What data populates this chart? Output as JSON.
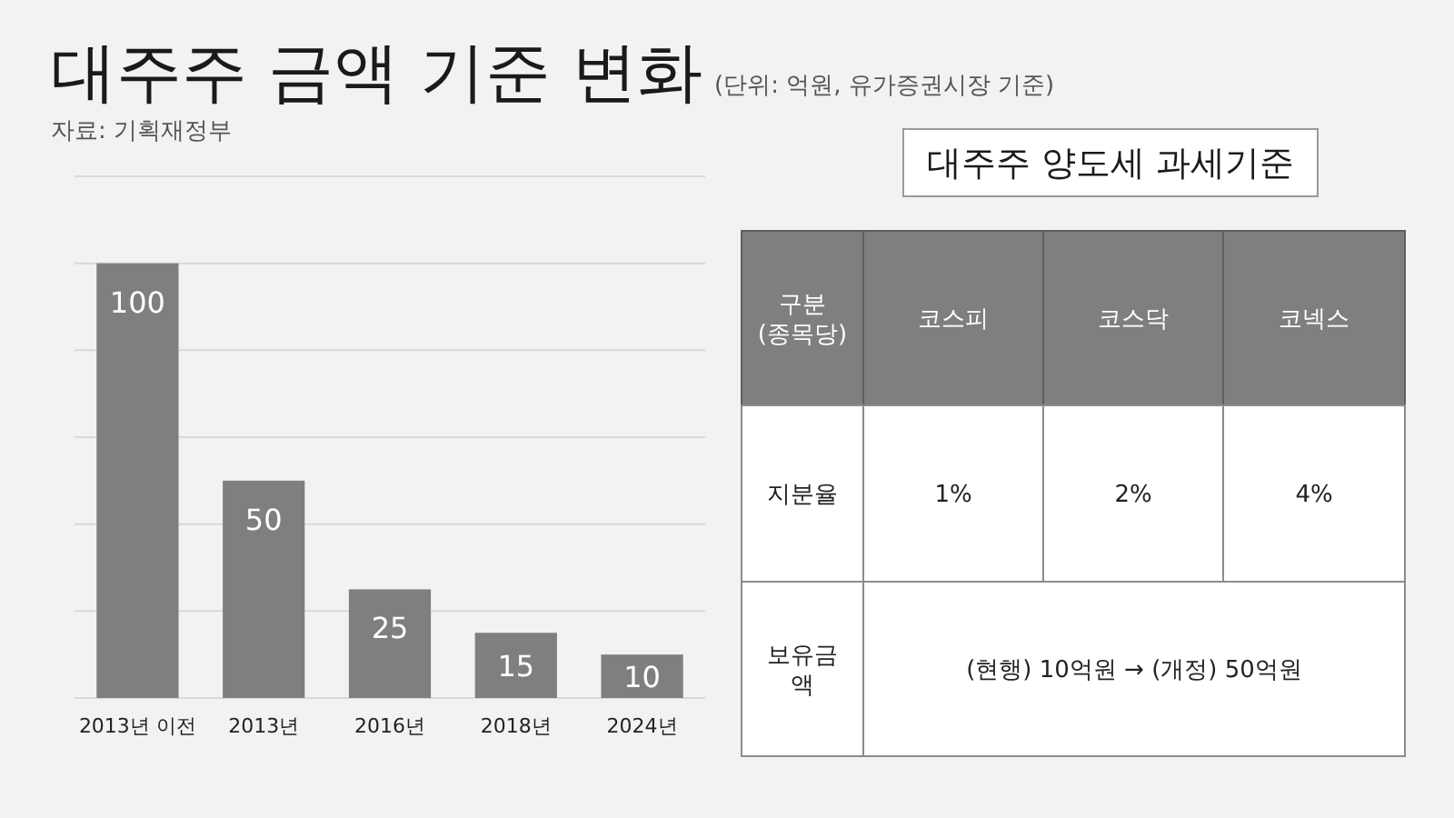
{
  "chart_data": [
    {
      "type": "bar",
      "title": "대주주 금액 기준 변화",
      "subtitle": "(단위: 억원, 유가증권시장 기준)",
      "annotations": [
        "자료: 기획재정부"
      ],
      "categories": [
        "2013년 이전",
        "2013년",
        "2016년",
        "2018년",
        "2024년"
      ],
      "values": [
        100,
        50,
        25,
        15,
        10
      ],
      "color": "#7f7f7f",
      "ylim": [
        0,
        120
      ],
      "yticks": [
        {
          "value": 0,
          "label": null
        },
        {
          "value": 20,
          "label": null
        },
        {
          "value": 40,
          "label": null
        },
        {
          "value": 60,
          "label": null
        },
        {
          "value": 80,
          "label": null
        },
        {
          "value": 100,
          "label": null
        },
        {
          "value": 120,
          "label": null
        }
      ],
      "grid": "y",
      "tick_labels": "x",
      "data_labels": true
    },
    {
      "type": "other",
      "title": "대주주 양도세 과세기준",
      "ylabel": "구분 (종목당)",
      "categories": [
        "코스피",
        "코스닥",
        "코넥스"
      ],
      "y_categories": [
        "지분율",
        "보유금액"
      ],
      "cell_labels": [
        [
          "1%",
          "2%",
          "4%"
        ],
        [
          "(현행) 10억원 → (개정) 50억원",
          null,
          null
        ]
      ]
    }
  ]
}
